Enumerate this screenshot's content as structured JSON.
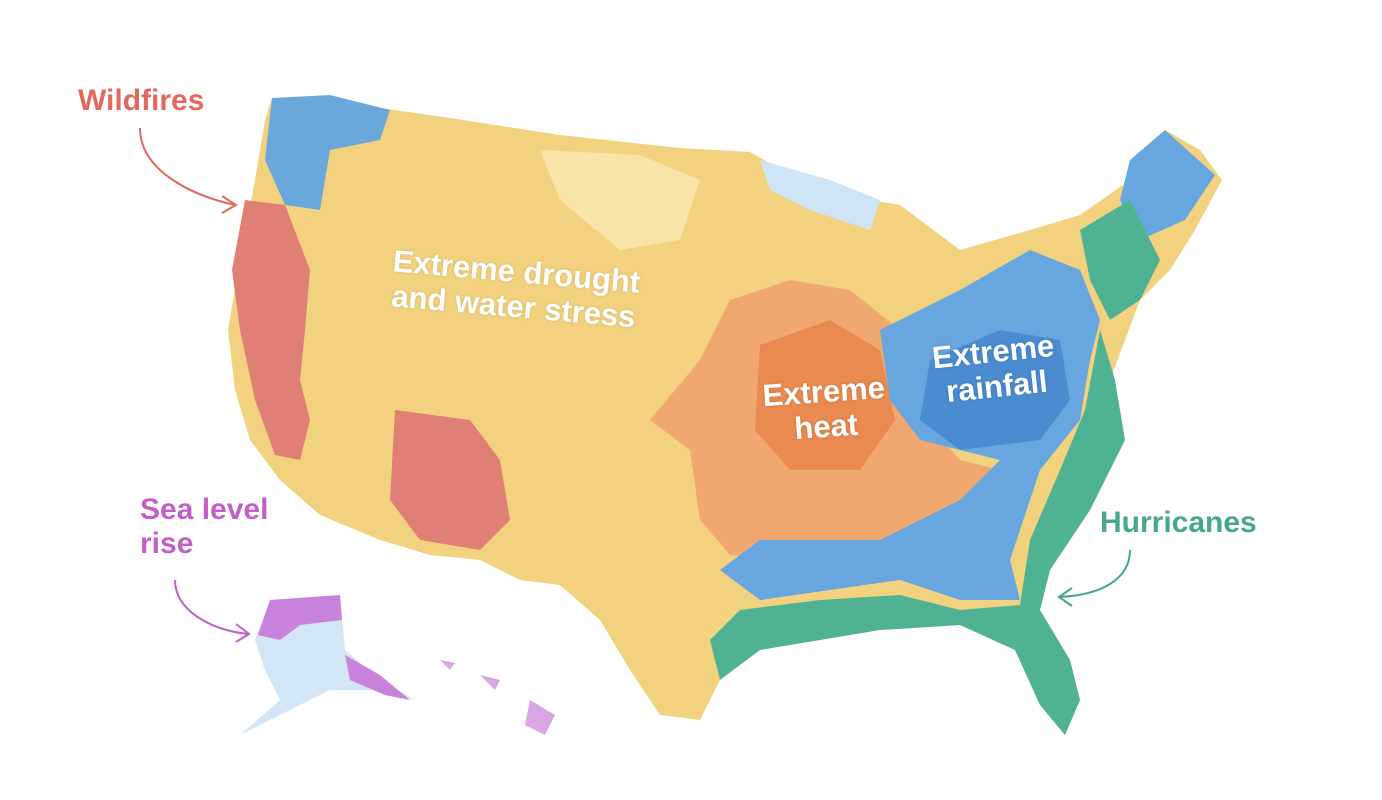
{
  "labels": {
    "wildfires": "Wildfires",
    "sea_level_rise": "Sea level rise",
    "hurricanes": "Hurricanes",
    "drought": "Extreme drought and water stress",
    "heat": "Extreme heat",
    "rainfall": "Extreme rainfall"
  }
}
